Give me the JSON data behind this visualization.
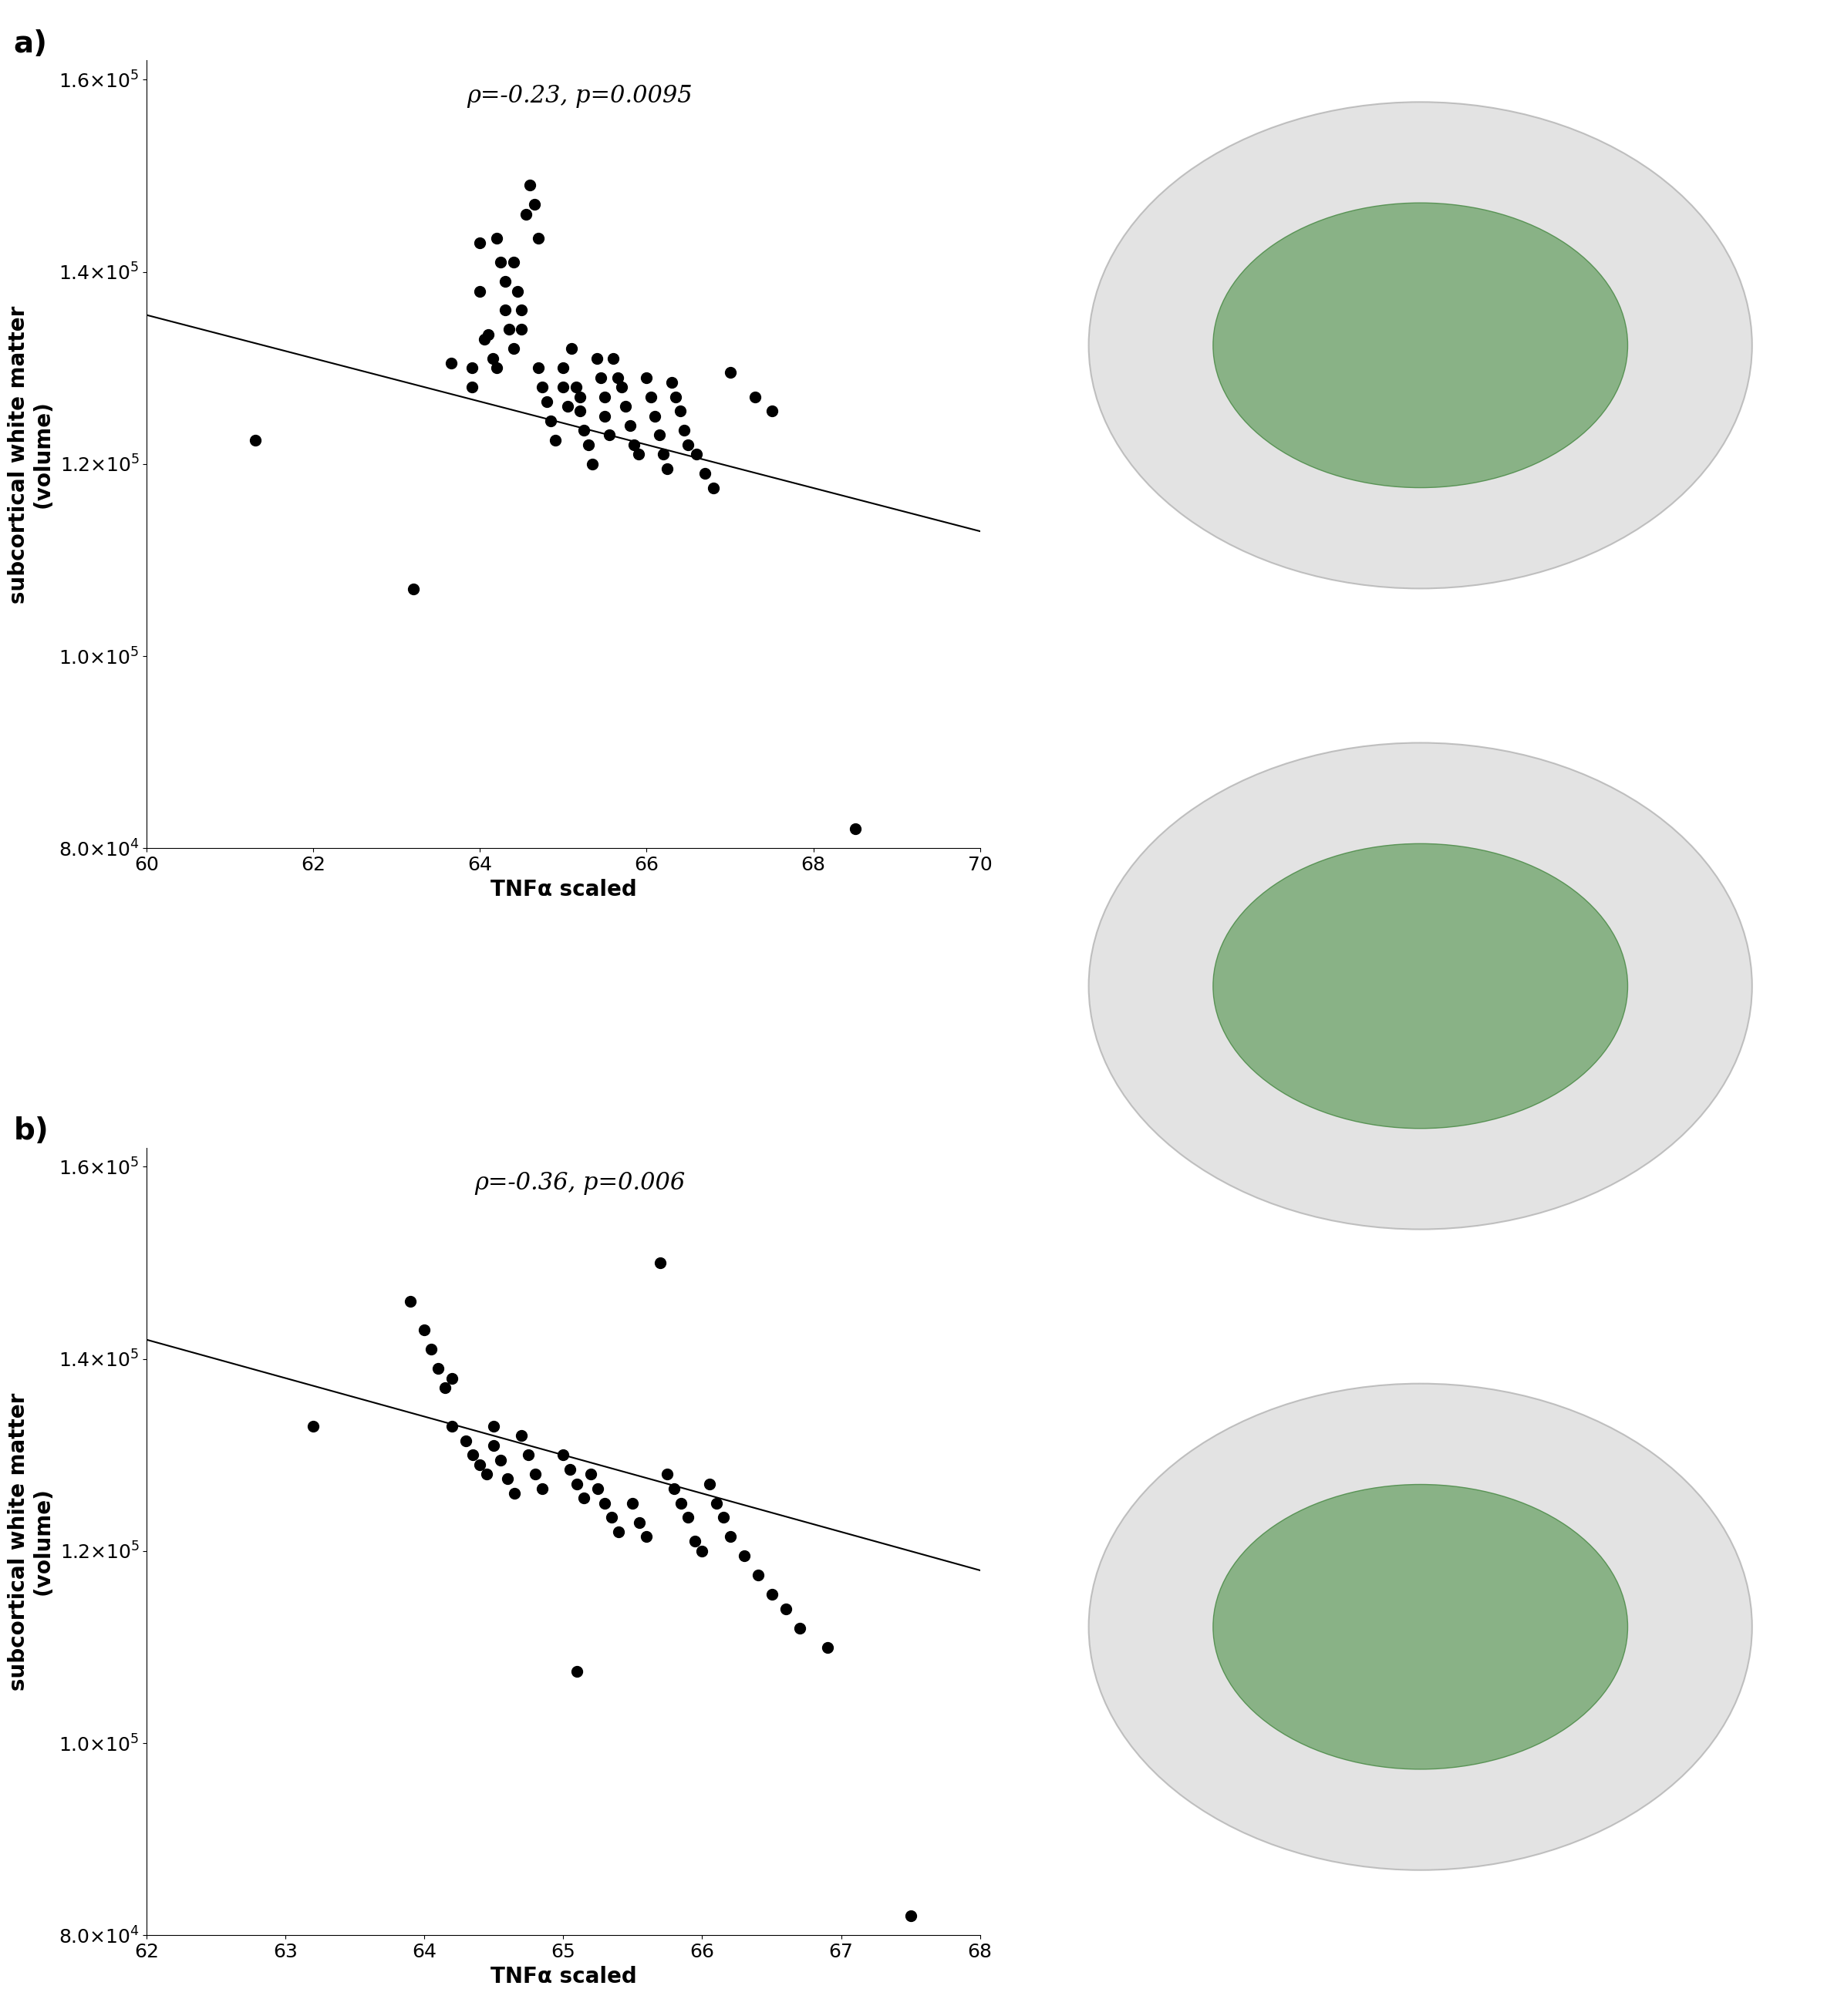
{
  "panel_a": {
    "label": "a)",
    "annotation": "ρ=-0.23, p=0.0095",
    "xlim": [
      60,
      70
    ],
    "ylim": [
      80000,
      162000
    ],
    "xticks": [
      60,
      62,
      64,
      66,
      68,
      70
    ],
    "yticks": [
      80000,
      100000,
      120000,
      140000,
      160000
    ],
    "xlabel": "TNFα scaled",
    "ylabel": "subcortical white matter\n(volume)",
    "line_x": [
      60,
      70
    ],
    "line_y": [
      135500,
      113000
    ],
    "scatter_x": [
      61.3,
      63.2,
      63.65,
      63.9,
      63.9,
      64.0,
      64.0,
      64.05,
      64.1,
      64.15,
      64.2,
      64.2,
      64.25,
      64.3,
      64.3,
      64.35,
      64.4,
      64.4,
      64.45,
      64.5,
      64.5,
      64.55,
      64.6,
      64.65,
      64.7,
      64.7,
      64.75,
      64.8,
      64.85,
      64.9,
      65.0,
      65.0,
      65.05,
      65.1,
      65.15,
      65.2,
      65.2,
      65.25,
      65.3,
      65.35,
      65.4,
      65.45,
      65.5,
      65.5,
      65.55,
      65.6,
      65.65,
      65.7,
      65.75,
      65.8,
      65.85,
      65.9,
      66.0,
      66.05,
      66.1,
      66.15,
      66.2,
      66.25,
      66.3,
      66.35,
      66.4,
      66.45,
      66.5,
      66.6,
      66.7,
      66.8,
      67.0,
      67.3,
      67.5,
      68.5
    ],
    "scatter_y": [
      122500,
      107000,
      130500,
      130000,
      128000,
      143000,
      138000,
      133000,
      133500,
      131000,
      130000,
      143500,
      141000,
      139000,
      136000,
      134000,
      132000,
      141000,
      138000,
      136000,
      134000,
      146000,
      149000,
      147000,
      143500,
      130000,
      128000,
      126500,
      124500,
      122500,
      130000,
      128000,
      126000,
      132000,
      128000,
      127000,
      125500,
      123500,
      122000,
      120000,
      131000,
      129000,
      127000,
      125000,
      123000,
      131000,
      129000,
      128000,
      126000,
      124000,
      122000,
      121000,
      129000,
      127000,
      125000,
      123000,
      121000,
      119500,
      128500,
      127000,
      125500,
      123500,
      122000,
      121000,
      119000,
      117500,
      129500,
      127000,
      125500,
      82000
    ]
  },
  "panel_b": {
    "label": "b)",
    "annotation": "ρ=-0.36, p=0.006",
    "xlim": [
      62,
      68
    ],
    "ylim": [
      80000,
      162000
    ],
    "xticks": [
      62,
      63,
      64,
      65,
      66,
      67,
      68
    ],
    "yticks": [
      80000,
      100000,
      120000,
      140000,
      160000
    ],
    "xlabel": "TNFα scaled",
    "ylabel": "subcortical white matter\n(volume)",
    "line_x": [
      62,
      68
    ],
    "line_y": [
      142000,
      118000
    ],
    "scatter_x": [
      63.2,
      63.9,
      64.0,
      64.05,
      64.1,
      64.15,
      64.2,
      64.2,
      64.3,
      64.35,
      64.4,
      64.45,
      64.5,
      64.5,
      64.55,
      64.6,
      64.65,
      64.7,
      64.75,
      64.8,
      64.85,
      65.0,
      65.05,
      65.1,
      65.15,
      65.2,
      65.25,
      65.3,
      65.35,
      65.4,
      65.5,
      65.55,
      65.6,
      65.7,
      65.75,
      65.8,
      65.85,
      65.9,
      65.95,
      66.0,
      66.05,
      66.1,
      66.15,
      66.2,
      66.3,
      66.4,
      66.5,
      66.6,
      66.7,
      66.9,
      65.1,
      67.5
    ],
    "scatter_y": [
      133000,
      146000,
      143000,
      141000,
      139000,
      137000,
      138000,
      133000,
      131500,
      130000,
      129000,
      128000,
      133000,
      131000,
      129500,
      127500,
      126000,
      132000,
      130000,
      128000,
      126500,
      130000,
      128500,
      127000,
      125500,
      128000,
      126500,
      125000,
      123500,
      122000,
      125000,
      123000,
      121500,
      150000,
      128000,
      126500,
      125000,
      123500,
      121000,
      120000,
      127000,
      125000,
      123500,
      121500,
      119500,
      117500,
      115500,
      114000,
      112000,
      110000,
      107500,
      82000
    ]
  },
  "figure_bg": "#ffffff",
  "scatter_color": "#000000",
  "scatter_size": 100,
  "line_color": "#000000",
  "line_width": 1.5,
  "font_size_label": 20,
  "font_size_annotation": 22,
  "font_size_panel": 28,
  "font_size_tick": 18
}
